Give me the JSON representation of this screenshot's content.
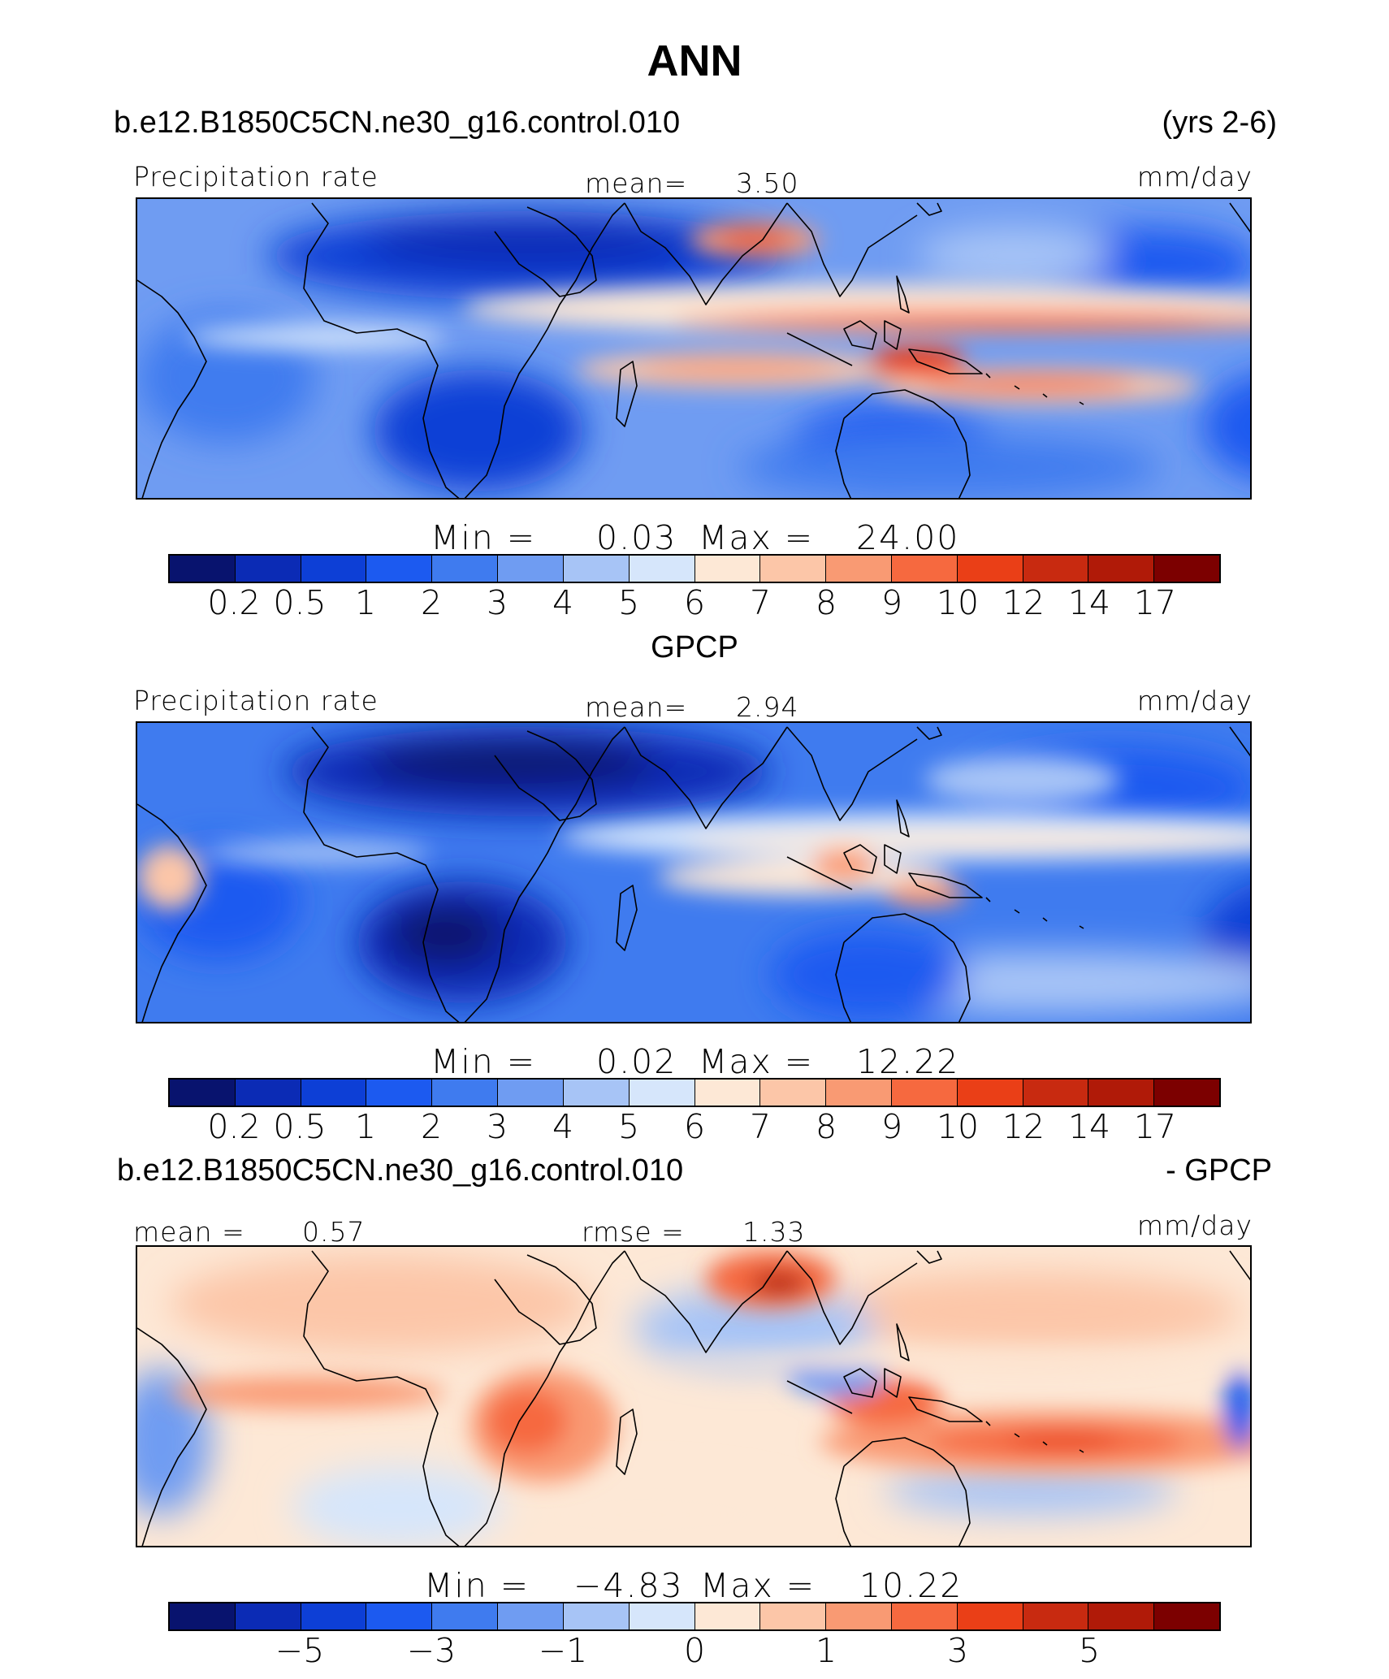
{
  "main_title": "ANN",
  "panel1": {
    "case": "b.e12.B1850C5CN.ne30_g16.control.010",
    "years": "(yrs 2-6)",
    "variable": "Precipitation rate",
    "mean_label": "mean=",
    "mean_value": "3.50",
    "units": "mm/day",
    "min_label": "Min =",
    "min_value": "0.03",
    "max_label": "Max =",
    "max_value": "24.00"
  },
  "panel2": {
    "title": "GPCP",
    "variable": "Precipitation rate",
    "mean_label": "mean=",
    "mean_value": "2.94",
    "units": "mm/day",
    "min_label": "Min =",
    "min_value": "0.02",
    "max_label": "Max =",
    "max_value": "12.22"
  },
  "panel3": {
    "case": "b.e12.B1850C5CN.ne30_g16.control.010",
    "minus_label": "- GPCP",
    "mean_label": "mean =",
    "mean_value": "0.57",
    "rmse_label": "rmse =",
    "rmse_value": "1.33",
    "units": "mm/day",
    "min_label": "Min =",
    "min_value": "−4.83",
    "max_label": "Max =",
    "max_value": "10.22"
  },
  "colorbar_abs": {
    "ticks": [
      "0.2",
      "0.5",
      "1",
      "2",
      "3",
      "4",
      "5",
      "6",
      "7",
      "8",
      "9",
      "10",
      "12",
      "14",
      "17"
    ],
    "colors": [
      "#08136e",
      "#0b2bb5",
      "#0d3fd6",
      "#1c5af0",
      "#3f7bef",
      "#6f9cf2",
      "#a7c4f6",
      "#d6e6fb",
      "#fde8d6",
      "#fcc6a8",
      "#f99a73",
      "#f6693f",
      "#ea3f17",
      "#c82a10",
      "#b01a08",
      "#7c0000"
    ]
  },
  "colorbar_diff": {
    "ticks": [
      "−5",
      "−3",
      "−1",
      "0",
      "1",
      "3",
      "5"
    ],
    "colors": [
      "#08136e",
      "#0b2bb5",
      "#0d3fd6",
      "#1c5af0",
      "#3f7bef",
      "#6f9cf2",
      "#a7c4f6",
      "#d6e6fb",
      "#fde8d6",
      "#fcc6a8",
      "#f99a73",
      "#f6693f",
      "#ea3f17",
      "#c82a10",
      "#b01a08",
      "#7c0000"
    ]
  }
}
